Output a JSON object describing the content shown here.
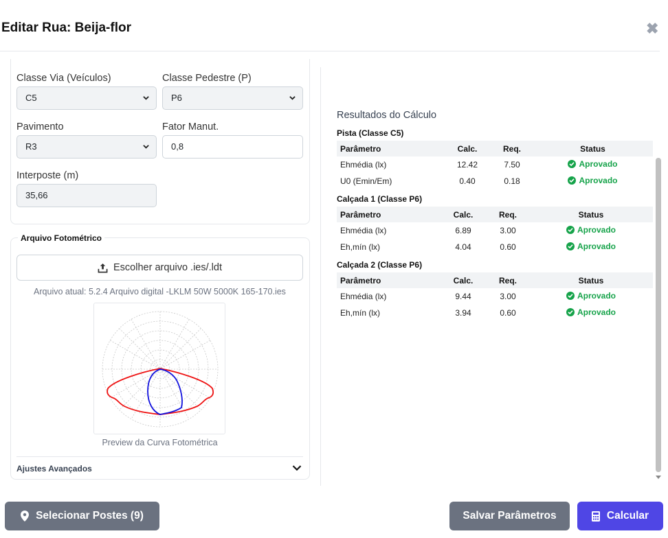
{
  "header": {
    "title": "Editar Rua: Beija-flor",
    "close_icon": "close-icon"
  },
  "form": {
    "classe_via": {
      "label": "Classe Via (Veículos)",
      "value": "C5"
    },
    "classe_pedestre": {
      "label": "Classe Pedestre (P)",
      "value": "P6"
    },
    "pavimento": {
      "label": "Pavimento",
      "value": "R3"
    },
    "fator_manut": {
      "label": "Fator Manut.",
      "value": "0,8"
    },
    "interposte": {
      "label": "Interposte (m)",
      "value": "35,66"
    }
  },
  "photometric": {
    "legend": "Arquivo Fotométrico",
    "upload_label": "Escolher arquivo .ies/.ldt",
    "current_file": "Arquivo atual: 5.2.4 Arquivo digital -LKLM 50W 5000K 165-170.ies",
    "preview_label": "Preview da Curva Fotométrica",
    "advanced_label": "Ajustes Avançados",
    "curve_colors": {
      "red": "#ee1111",
      "blue": "#1111dd"
    }
  },
  "results": {
    "title": "Resultados do Cálculo",
    "headers": {
      "param": "Parâmetro",
      "calc": "Calc.",
      "req": "Req.",
      "status": "Status"
    },
    "sections": [
      {
        "title": "Pista (Classe C5)",
        "rows": [
          {
            "param": "Ehmédia (lx)",
            "calc": "12.42",
            "req": "7.50",
            "status": "Aprovado"
          },
          {
            "param": "U0 (Emin/Em)",
            "calc": "0.40",
            "req": "0.18",
            "status": "Aprovado"
          }
        ]
      },
      {
        "title": "Calçada 1 (Classe P6)",
        "rows": [
          {
            "param": "Ehmédia (lx)",
            "calc": "6.89",
            "req": "3.00",
            "status": "Aprovado"
          },
          {
            "param": "Eh,mín (lx)",
            "calc": "4.04",
            "req": "0.60",
            "status": "Aprovado"
          }
        ]
      },
      {
        "title": "Calçada 2 (Classe P6)",
        "rows": [
          {
            "param": "Ehmédia (lx)",
            "calc": "9.44",
            "req": "3.00",
            "status": "Aprovado"
          },
          {
            "param": "Eh,mín (lx)",
            "calc": "3.94",
            "req": "0.60",
            "status": "Aprovado"
          }
        ]
      }
    ]
  },
  "footer": {
    "select_posts": "Selecionar Postes (9)",
    "save": "Salvar Parâmetros",
    "calculate": "Calcular"
  },
  "colors": {
    "primary": "#4f46e5",
    "secondary": "#6b7280",
    "success": "#16a34a"
  }
}
